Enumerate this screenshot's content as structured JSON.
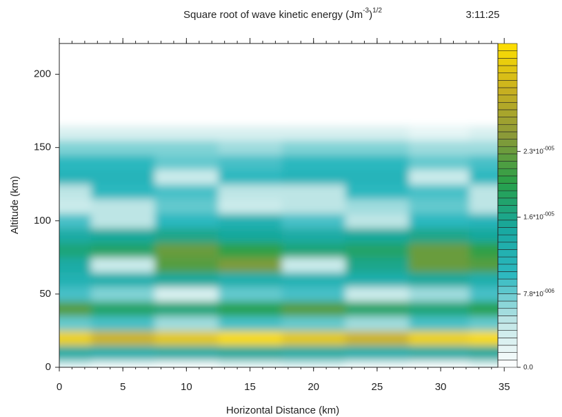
{
  "chart_data": {
    "type": "contour",
    "title": [
      "Square root of wave kinetic energy (Jm",
      "-3",
      ")",
      "1/2"
    ],
    "time": "3:11:25",
    "x_label": "Horizontal Distance (km)",
    "y_label": "Altitude (km)",
    "xlim": [
      0,
      34.5
    ],
    "xticks": [
      0,
      5,
      10,
      15,
      20,
      25,
      30,
      35
    ],
    "ylim": [
      0,
      221
    ],
    "yticks": [
      0,
      50,
      100,
      150,
      200
    ],
    "x": [
      0,
      5,
      10,
      15,
      20,
      25,
      30,
      34.5
    ],
    "y": [
      0,
      10,
      20,
      30,
      40,
      50,
      60,
      70,
      80,
      90,
      100,
      110,
      120,
      130,
      140,
      150,
      160,
      170
    ],
    "z": [
      [
        4e-06,
        2e-06,
        1e-06,
        3e-06,
        4e-06,
        2e-06,
        1e-06,
        3e-06
      ],
      [
        1.4e-05,
        1.3e-05,
        1.4e-05,
        1.5e-05,
        1.4e-05,
        1.3e-05,
        1.4e-05,
        1.5e-05
      ],
      [
        3.3e-05,
        3e-05,
        3.2e-05,
        3.4e-05,
        3.2e-05,
        3e-05,
        3.3e-05,
        3.4e-05
      ],
      [
        8e-06,
        9e-06,
        6e-06,
        9e-06,
        8e-06,
        6e-06,
        9e-06,
        8e-06
      ],
      [
        2.2e-05,
        1.8e-05,
        1.7e-05,
        1.9e-05,
        2.2e-05,
        1.8e-05,
        1.7e-05,
        1.9e-05
      ],
      [
        9e-06,
        7e-06,
        3e-06,
        8e-06,
        9e-06,
        4e-06,
        6e-06,
        9e-06
      ],
      [
        1.2e-05,
        1.3e-05,
        1.5e-05,
        1.3e-05,
        1.2e-05,
        1.3e-05,
        1.5e-05,
        1.3e-05
      ],
      [
        1.4e-05,
        4e-06,
        2.2e-05,
        2.4e-05,
        4e-06,
        1.6e-05,
        2.3e-05,
        2.2e-05
      ],
      [
        1.7e-05,
        1.8e-05,
        2.3e-05,
        2e-05,
        1.7e-05,
        1.8e-05,
        2.3e-05,
        2e-05
      ],
      [
        1.4e-05,
        1.5e-05,
        1.6e-05,
        1.5e-05,
        1.4e-05,
        1.5e-05,
        1.6e-05,
        1.5e-05
      ],
      [
        9e-06,
        5e-06,
        1e-05,
        1.2e-05,
        9e-06,
        5e-06,
        1e-05,
        1.1e-05
      ],
      [
        4e-06,
        5e-06,
        8e-06,
        4e-06,
        5e-06,
        6e-06,
        8e-06,
        5e-06
      ],
      [
        5e-06,
        1e-05,
        9e-06,
        5e-06,
        5e-06,
        1e-05,
        9e-06,
        5e-06
      ],
      [
        1.1e-05,
        1.1e-05,
        4e-06,
        1e-05,
        1.1e-05,
        1.1e-05,
        4e-06,
        1e-05
      ],
      [
        1e-05,
        1e-05,
        8e-06,
        9e-06,
        1e-05,
        1e-05,
        8e-06,
        9e-06
      ],
      [
        7e-06,
        7e-06,
        7e-06,
        6e-06,
        7e-06,
        7e-06,
        6e-06,
        6e-06
      ],
      [
        3e-06,
        3e-06,
        3e-06,
        3e-06,
        3e-06,
        3e-06,
        2e-06,
        3e-06
      ],
      [
        0,
        0,
        0,
        0,
        0,
        0,
        0,
        0
      ]
    ],
    "zlim": [
      0,
      3.45e-05
    ],
    "colorbar_ticks": [
      {
        "value": 0,
        "label": [
          "0.0"
        ]
      },
      {
        "value": 7.8e-06,
        "label": [
          "7.8*10",
          "-006"
        ]
      },
      {
        "value": 1.6e-05,
        "label": [
          "1.6*10",
          "-005"
        ]
      },
      {
        "value": 2.3e-05,
        "label": [
          "2.3*10",
          "-005"
        ]
      }
    ],
    "colormap": [
      "#ffffff",
      "#bfe6e6",
      "#2cb8c0",
      "#18a8a0",
      "#28a048",
      "#8a9a38",
      "#c8b020",
      "#ffe000"
    ]
  }
}
